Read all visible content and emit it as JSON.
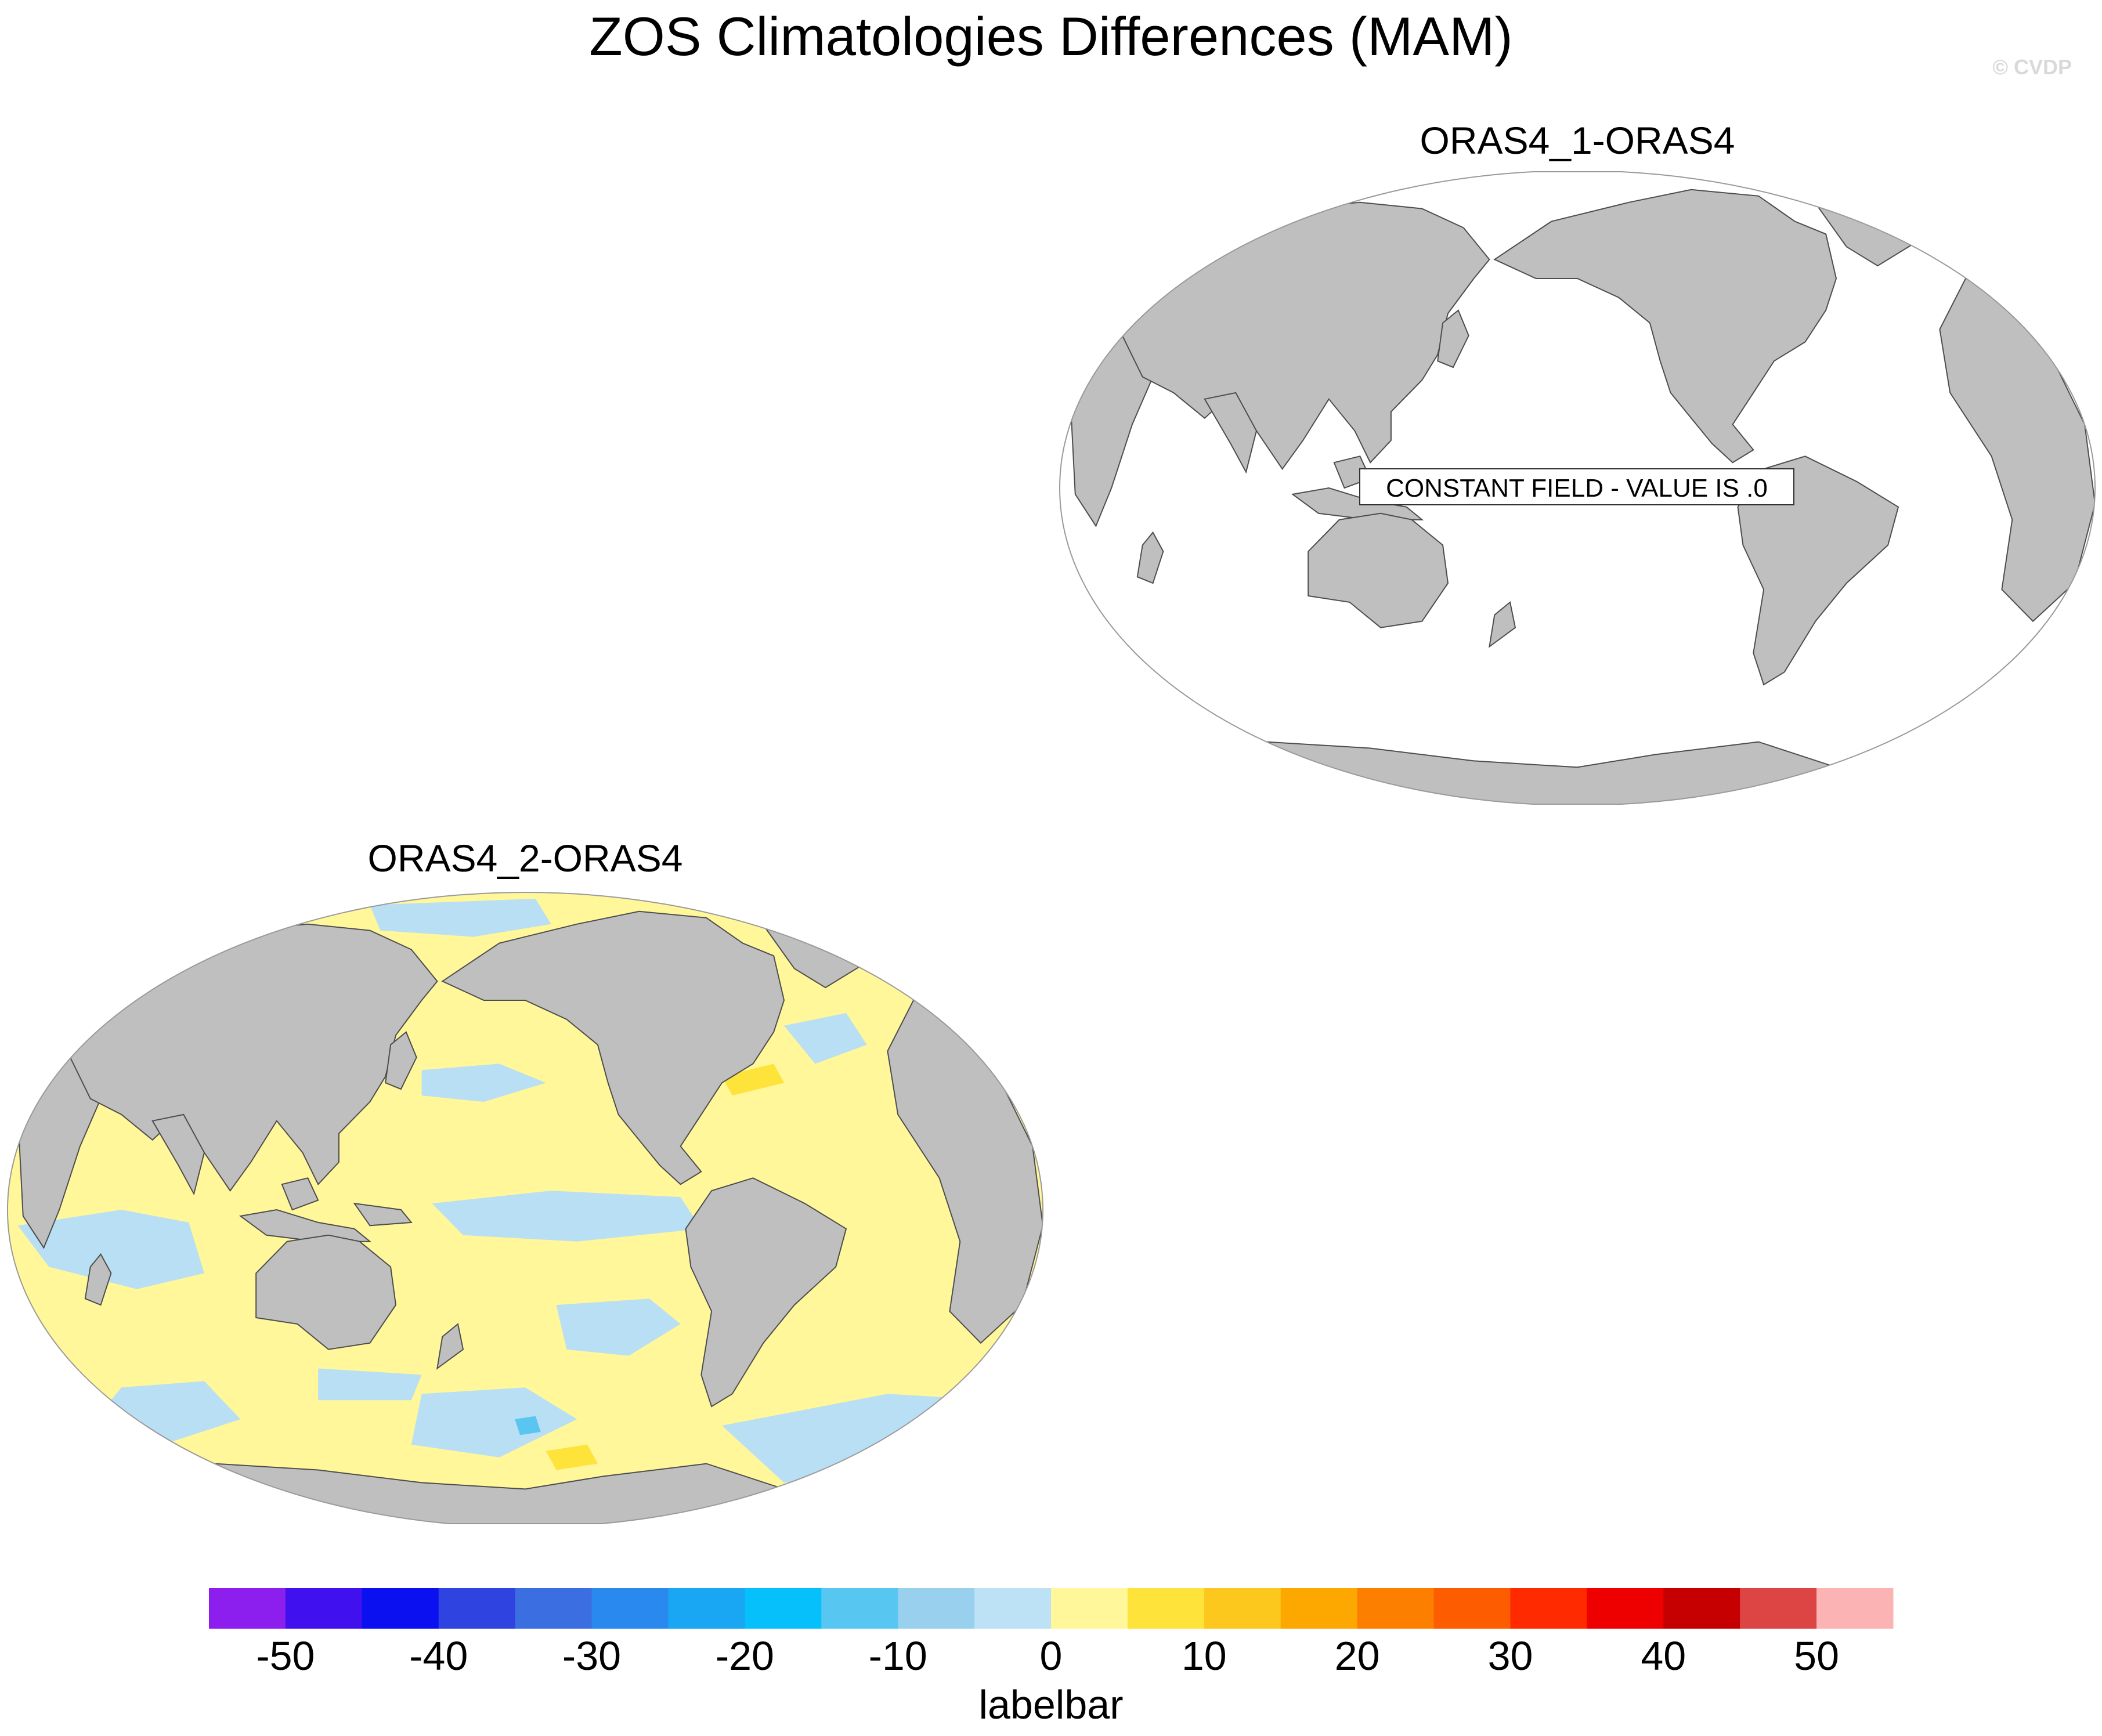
{
  "title": "ZOS Climatologies Differences (MAM)",
  "watermark": "© CVDP",
  "panels": [
    {
      "id": "panel-1",
      "subtitle": "ORAS4_1-ORAS4",
      "constant_field_label": "CONSTANT FIELD - VALUE IS .0"
    },
    {
      "id": "panel-2",
      "subtitle": "ORAS4_2-ORAS4"
    }
  ],
  "colors": {
    "land": "#bfbfbf",
    "coast": "#4d4d4d",
    "ocean_constant": "#ffffff",
    "ocean_positive": "#fff799",
    "ocean_negative": "#b8dff4",
    "ocean_strong_positive": "#fde33a",
    "ocean_strong_negative": "#5bc5f2",
    "watermark": "#d9d9d9"
  },
  "colorbar": {
    "title": "labelbar",
    "colors": [
      "#8c1eee",
      "#4010ee",
      "#0a10f0",
      "#2e43e0",
      "#3b6ee0",
      "#2a89ef",
      "#19a6f2",
      "#06c0fb",
      "#57c7f2",
      "#98d0ee",
      "#bde2f5",
      "#fff799",
      "#fde33a",
      "#fcc81d",
      "#fca800",
      "#fd7f00",
      "#fd5c00",
      "#ff2a00",
      "#ee0000",
      "#c60000",
      "#dd4444",
      "#fcb3b3"
    ],
    "labels": [
      "-50",
      "-40",
      "-30",
      "-20",
      "-10",
      "0",
      "10",
      "20",
      "30",
      "40",
      "50"
    ]
  }
}
